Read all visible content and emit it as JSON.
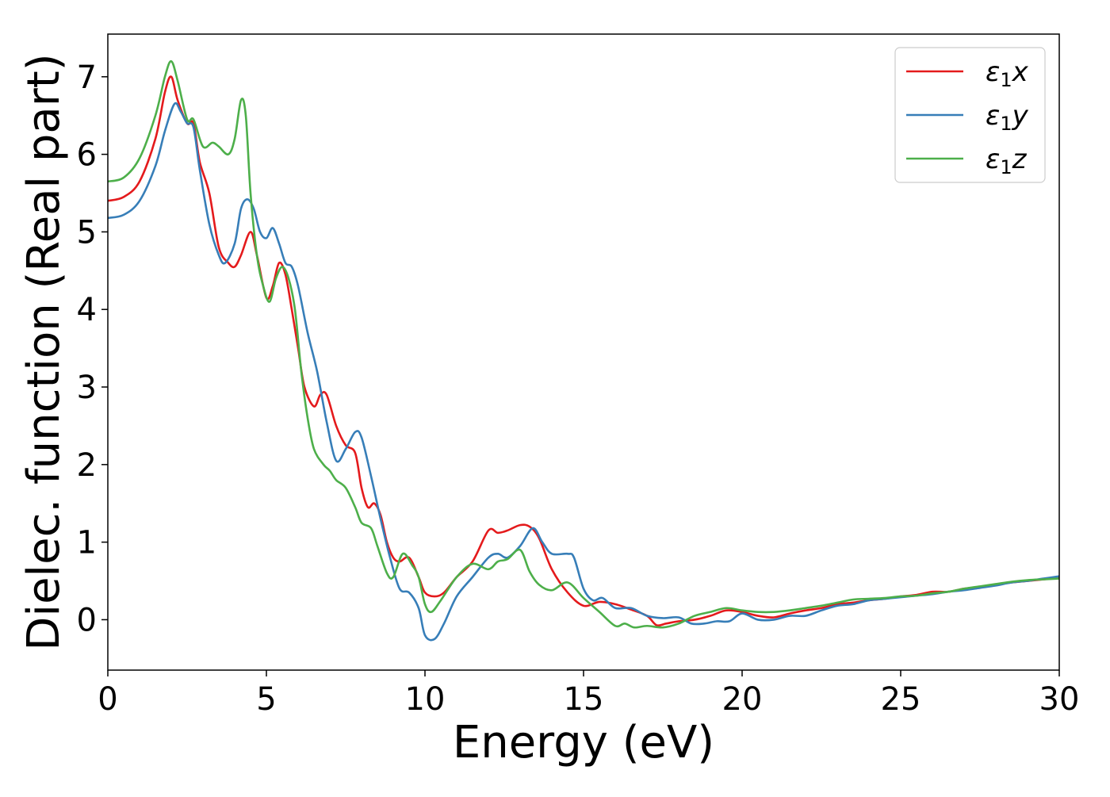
{
  "chart_data": {
    "type": "line",
    "title": "",
    "xlabel": "Energy (eV)",
    "ylabel": "Dielec. function (Real part)",
    "xlim": [
      0,
      30
    ],
    "ylim": [
      -0.65,
      7.55
    ],
    "xticks": [
      0,
      5,
      10,
      15,
      20,
      25,
      30
    ],
    "yticks": [
      0,
      1,
      2,
      3,
      4,
      5,
      6,
      7
    ],
    "grid": false,
    "legend_position": "top-right",
    "series": [
      {
        "name": "ε1x",
        "legend_base": "ε",
        "legend_sub": "1",
        "legend_var": "x",
        "color": "#e41a1c",
        "points": [
          [
            0,
            5.4
          ],
          [
            0.5,
            5.45
          ],
          [
            1.0,
            5.65
          ],
          [
            1.5,
            6.2
          ],
          [
            1.8,
            6.8
          ],
          [
            2.0,
            7.0
          ],
          [
            2.2,
            6.7
          ],
          [
            2.5,
            6.4
          ],
          [
            2.7,
            6.4
          ],
          [
            2.9,
            5.9
          ],
          [
            3.2,
            5.5
          ],
          [
            3.5,
            4.8
          ],
          [
            3.8,
            4.6
          ],
          [
            4.0,
            4.55
          ],
          [
            4.2,
            4.7
          ],
          [
            4.5,
            5.0
          ],
          [
            4.7,
            4.7
          ],
          [
            5.0,
            4.15
          ],
          [
            5.2,
            4.3
          ],
          [
            5.4,
            4.6
          ],
          [
            5.6,
            4.45
          ],
          [
            5.8,
            4.0
          ],
          [
            6.0,
            3.5
          ],
          [
            6.2,
            3.0
          ],
          [
            6.5,
            2.75
          ],
          [
            6.7,
            2.9
          ],
          [
            6.9,
            2.9
          ],
          [
            7.2,
            2.5
          ],
          [
            7.5,
            2.25
          ],
          [
            7.8,
            2.15
          ],
          [
            8.0,
            1.7
          ],
          [
            8.2,
            1.45
          ],
          [
            8.4,
            1.5
          ],
          [
            8.6,
            1.35
          ],
          [
            8.8,
            1.0
          ],
          [
            9.0,
            0.8
          ],
          [
            9.2,
            0.75
          ],
          [
            9.5,
            0.8
          ],
          [
            9.8,
            0.55
          ],
          [
            10.0,
            0.35
          ],
          [
            10.3,
            0.3
          ],
          [
            10.6,
            0.35
          ],
          [
            11.0,
            0.55
          ],
          [
            11.5,
            0.75
          ],
          [
            12.0,
            1.15
          ],
          [
            12.3,
            1.12
          ],
          [
            12.6,
            1.15
          ],
          [
            13.0,
            1.22
          ],
          [
            13.3,
            1.2
          ],
          [
            13.6,
            1.05
          ],
          [
            14.0,
            0.65
          ],
          [
            14.5,
            0.35
          ],
          [
            15.0,
            0.18
          ],
          [
            15.5,
            0.23
          ],
          [
            16.0,
            0.2
          ],
          [
            16.5,
            0.13
          ],
          [
            17.0,
            0.05
          ],
          [
            17.3,
            -0.07
          ],
          [
            17.6,
            -0.05
          ],
          [
            18.0,
            -0.02
          ],
          [
            18.5,
            0.0
          ],
          [
            19.0,
            0.05
          ],
          [
            19.5,
            0.12
          ],
          [
            20.0,
            0.1
          ],
          [
            20.5,
            0.05
          ],
          [
            21.0,
            0.03
          ],
          [
            21.5,
            0.08
          ],
          [
            22.0,
            0.12
          ],
          [
            22.5,
            0.15
          ],
          [
            23.0,
            0.2
          ],
          [
            23.5,
            0.22
          ],
          [
            24.0,
            0.25
          ],
          [
            24.5,
            0.27
          ],
          [
            25.0,
            0.3
          ],
          [
            25.5,
            0.32
          ],
          [
            26.0,
            0.36
          ],
          [
            26.5,
            0.36
          ],
          [
            27.0,
            0.4
          ],
          [
            27.5,
            0.42
          ],
          [
            28.0,
            0.45
          ],
          [
            28.5,
            0.48
          ],
          [
            29.0,
            0.5
          ],
          [
            29.5,
            0.52
          ],
          [
            30.0,
            0.54
          ]
        ]
      },
      {
        "name": "ε1y",
        "legend_base": "ε",
        "legend_sub": "1",
        "legend_var": "y",
        "color": "#377eb8",
        "points": [
          [
            0,
            5.18
          ],
          [
            0.5,
            5.22
          ],
          [
            1.0,
            5.4
          ],
          [
            1.5,
            5.85
          ],
          [
            1.8,
            6.3
          ],
          [
            2.1,
            6.65
          ],
          [
            2.3,
            6.55
          ],
          [
            2.5,
            6.4
          ],
          [
            2.7,
            6.35
          ],
          [
            2.9,
            5.8
          ],
          [
            3.2,
            5.1
          ],
          [
            3.5,
            4.7
          ],
          [
            3.7,
            4.6
          ],
          [
            4.0,
            4.85
          ],
          [
            4.2,
            5.3
          ],
          [
            4.4,
            5.42
          ],
          [
            4.6,
            5.3
          ],
          [
            4.8,
            5.0
          ],
          [
            5.0,
            4.92
          ],
          [
            5.2,
            5.05
          ],
          [
            5.4,
            4.85
          ],
          [
            5.6,
            4.6
          ],
          [
            5.8,
            4.55
          ],
          [
            6.0,
            4.3
          ],
          [
            6.3,
            3.7
          ],
          [
            6.6,
            3.2
          ],
          [
            6.9,
            2.55
          ],
          [
            7.2,
            2.05
          ],
          [
            7.5,
            2.2
          ],
          [
            7.8,
            2.42
          ],
          [
            8.0,
            2.35
          ],
          [
            8.3,
            1.85
          ],
          [
            8.6,
            1.3
          ],
          [
            8.9,
            0.8
          ],
          [
            9.2,
            0.4
          ],
          [
            9.5,
            0.35
          ],
          [
            9.8,
            0.15
          ],
          [
            10.0,
            -0.2
          ],
          [
            10.3,
            -0.25
          ],
          [
            10.6,
            -0.05
          ],
          [
            11.0,
            0.3
          ],
          [
            11.5,
            0.55
          ],
          [
            12.0,
            0.8
          ],
          [
            12.3,
            0.85
          ],
          [
            12.6,
            0.8
          ],
          [
            13.0,
            0.95
          ],
          [
            13.4,
            1.18
          ],
          [
            13.7,
            1.0
          ],
          [
            14.0,
            0.85
          ],
          [
            14.5,
            0.85
          ],
          [
            14.7,
            0.8
          ],
          [
            15.0,
            0.4
          ],
          [
            15.3,
            0.25
          ],
          [
            15.6,
            0.28
          ],
          [
            16.0,
            0.15
          ],
          [
            16.5,
            0.15
          ],
          [
            17.0,
            0.05
          ],
          [
            17.5,
            0.02
          ],
          [
            18.0,
            0.03
          ],
          [
            18.4,
            -0.05
          ],
          [
            18.8,
            -0.05
          ],
          [
            19.2,
            -0.02
          ],
          [
            19.6,
            -0.02
          ],
          [
            20.0,
            0.08
          ],
          [
            20.5,
            0.0
          ],
          [
            21.0,
            0.0
          ],
          [
            21.5,
            0.05
          ],
          [
            22.0,
            0.05
          ],
          [
            22.5,
            0.12
          ],
          [
            23.0,
            0.18
          ],
          [
            23.5,
            0.2
          ],
          [
            24.0,
            0.25
          ],
          [
            24.5,
            0.27
          ],
          [
            25.0,
            0.29
          ],
          [
            25.5,
            0.31
          ],
          [
            26.0,
            0.33
          ],
          [
            26.5,
            0.36
          ],
          [
            27.0,
            0.38
          ],
          [
            27.5,
            0.41
          ],
          [
            28.0,
            0.44
          ],
          [
            28.5,
            0.48
          ],
          [
            29.0,
            0.5
          ],
          [
            29.5,
            0.53
          ],
          [
            30.0,
            0.56
          ]
        ]
      },
      {
        "name": "ε1z",
        "legend_base": "ε",
        "legend_sub": "1",
        "legend_var": "z",
        "color": "#4daf4a",
        "points": [
          [
            0,
            5.65
          ],
          [
            0.5,
            5.7
          ],
          [
            1.0,
            5.95
          ],
          [
            1.5,
            6.5
          ],
          [
            1.8,
            7.0
          ],
          [
            2.0,
            7.2
          ],
          [
            2.2,
            6.95
          ],
          [
            2.5,
            6.45
          ],
          [
            2.7,
            6.45
          ],
          [
            3.0,
            6.1
          ],
          [
            3.3,
            6.15
          ],
          [
            3.5,
            6.1
          ],
          [
            3.8,
            6.0
          ],
          [
            4.0,
            6.2
          ],
          [
            4.2,
            6.7
          ],
          [
            4.35,
            6.5
          ],
          [
            4.5,
            5.5
          ],
          [
            4.7,
            4.7
          ],
          [
            4.9,
            4.3
          ],
          [
            5.1,
            4.1
          ],
          [
            5.3,
            4.4
          ],
          [
            5.5,
            4.55
          ],
          [
            5.7,
            4.4
          ],
          [
            5.9,
            4.0
          ],
          [
            6.1,
            3.2
          ],
          [
            6.3,
            2.6
          ],
          [
            6.5,
            2.2
          ],
          [
            6.8,
            2.0
          ],
          [
            7.0,
            1.92
          ],
          [
            7.2,
            1.8
          ],
          [
            7.5,
            1.7
          ],
          [
            7.8,
            1.45
          ],
          [
            8.0,
            1.25
          ],
          [
            8.3,
            1.18
          ],
          [
            8.5,
            0.95
          ],
          [
            8.8,
            0.6
          ],
          [
            9.0,
            0.55
          ],
          [
            9.3,
            0.85
          ],
          [
            9.6,
            0.7
          ],
          [
            9.8,
            0.55
          ],
          [
            10.0,
            0.2
          ],
          [
            10.2,
            0.1
          ],
          [
            10.5,
            0.25
          ],
          [
            11.0,
            0.55
          ],
          [
            11.5,
            0.72
          ],
          [
            12.0,
            0.65
          ],
          [
            12.3,
            0.75
          ],
          [
            12.6,
            0.78
          ],
          [
            13.0,
            0.9
          ],
          [
            13.3,
            0.62
          ],
          [
            13.6,
            0.45
          ],
          [
            14.0,
            0.38
          ],
          [
            14.5,
            0.48
          ],
          [
            15.0,
            0.28
          ],
          [
            15.5,
            0.1
          ],
          [
            16.0,
            -0.08
          ],
          [
            16.3,
            -0.05
          ],
          [
            16.6,
            -0.1
          ],
          [
            17.0,
            -0.08
          ],
          [
            17.5,
            -0.1
          ],
          [
            18.0,
            -0.05
          ],
          [
            18.5,
            0.05
          ],
          [
            19.0,
            0.1
          ],
          [
            19.5,
            0.15
          ],
          [
            20.0,
            0.12
          ],
          [
            20.5,
            0.1
          ],
          [
            21.0,
            0.1
          ],
          [
            21.5,
            0.12
          ],
          [
            22.0,
            0.15
          ],
          [
            22.5,
            0.18
          ],
          [
            23.0,
            0.22
          ],
          [
            23.5,
            0.26
          ],
          [
            24.0,
            0.27
          ],
          [
            24.5,
            0.28
          ],
          [
            25.0,
            0.3
          ],
          [
            25.5,
            0.31
          ],
          [
            26.0,
            0.34
          ],
          [
            26.5,
            0.36
          ],
          [
            27.0,
            0.4
          ],
          [
            27.5,
            0.43
          ],
          [
            28.0,
            0.46
          ],
          [
            28.5,
            0.49
          ],
          [
            29.0,
            0.51
          ],
          [
            29.5,
            0.52
          ],
          [
            30.0,
            0.53
          ]
        ]
      }
    ]
  }
}
